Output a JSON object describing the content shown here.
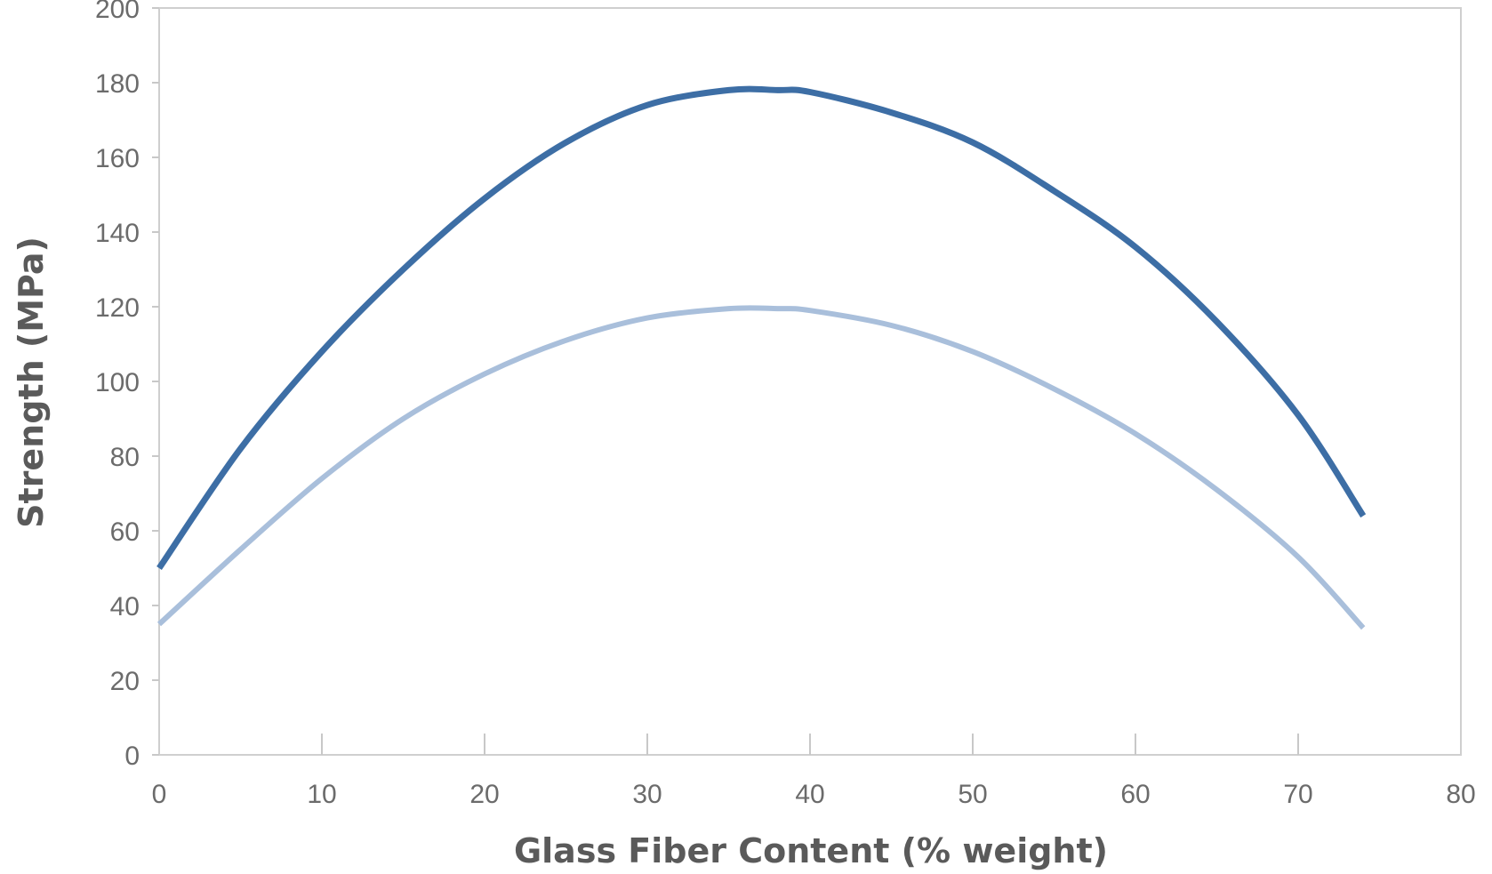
{
  "chart_data": {
    "type": "line",
    "title": "",
    "xlabel": "Glass Fiber Content (% weight)",
    "ylabel": "Strength (MPa)",
    "xlim": [
      0,
      80
    ],
    "ylim": [
      0,
      200
    ],
    "x_ticks": [
      "0",
      "10",
      "20",
      "30",
      "40",
      "50",
      "60",
      "70",
      "80"
    ],
    "y_ticks": [
      "0",
      "20",
      "40",
      "60",
      "80",
      "100",
      "120",
      "140",
      "160",
      "180",
      "200"
    ],
    "grid": false,
    "legend": "none",
    "x": [
      0,
      5,
      10,
      15,
      20,
      25,
      30,
      35,
      38,
      40,
      45,
      50,
      55,
      60,
      65,
      70,
      74
    ],
    "series": [
      {
        "color": "#3d6ea5",
        "values": [
          50,
          82,
          108,
          130,
          149,
          164,
          174,
          178,
          178,
          177.5,
          172,
          164,
          151,
          136,
          116,
          91,
          64
        ]
      },
      {
        "color": "#a9bfdb",
        "values": [
          35,
          55,
          74,
          90,
          102,
          111,
          117,
          119.5,
          119.5,
          119,
          115,
          108,
          98,
          86,
          71,
          53,
          34
        ]
      }
    ],
    "colors": {
      "axis": "#c8c8c8",
      "frame": "#cfcfcf"
    }
  }
}
